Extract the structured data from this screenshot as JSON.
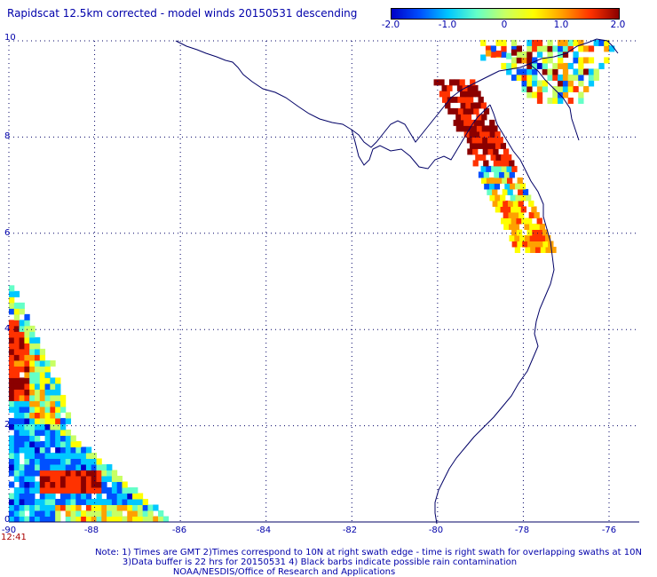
{
  "title": "Rapidscat 12.5km corrected - model winds 20150531 descending",
  "colorbar": {
    "ticks": [
      "-2.0",
      "-1.0",
      "0",
      "1.0",
      "2.0"
    ],
    "tick_values": [
      -2,
      -1,
      0,
      1,
      2
    ],
    "range": [
      -2,
      2
    ],
    "colors": [
      "#0000c8",
      "#0050ff",
      "#00c8ff",
      "#64ffc8",
      "#c8ff64",
      "#ffff00",
      "#ffa000",
      "#ff3200",
      "#8b0000"
    ]
  },
  "axes": {
    "x_labels": [
      "-90",
      "-88",
      "-86",
      "-84",
      "-82",
      "-80",
      "-78",
      "-76"
    ],
    "x_values": [
      -90,
      -88,
      -86,
      -84,
      -82,
      -80,
      -78,
      -76
    ],
    "y_labels": [
      "10",
      "8",
      "6",
      "4",
      "2",
      "0"
    ],
    "y_values": [
      10,
      8,
      6,
      4,
      2,
      0
    ],
    "lon_range": [
      -90,
      -75.5
    ],
    "lat_range": [
      0,
      10
    ],
    "grid": "dotted"
  },
  "time_label": "12:41",
  "notes": [
    "Note: 1) Times are GMT 2)Times correspond to 10N at right swath edge - time is right swath for overlapping swaths at 10N",
    "3)Data buffer is 22 hrs for 20150531 4) Black barbs indicate possible rain contamination",
    "NOAA/NESDIS/Office of Research and Applications"
  ],
  "coast_color": "#000066",
  "grid_color": "#000066",
  "swath_data": {
    "cell_deg": 0.12,
    "regions": [
      {
        "name": "west-swath",
        "lon_min": -90,
        "lon_max": -86.3,
        "lat_min": 0,
        "lat_max": 5.0,
        "boundary_lats": [
          5.0,
          4.3,
          3.5,
          2.3,
          1.5,
          0.4
        ],
        "pattern": "mixed-cool-with-warm-core"
      },
      {
        "name": "panama-bight",
        "lon_min": -79.6,
        "lon_max": -77.6,
        "lat_min": 5.6,
        "lat_max": 9.1,
        "pattern": "strong-positive"
      },
      {
        "name": "northeast-caribbean",
        "lon_min": -79.0,
        "lon_max": -75.9,
        "lat_min": 8.7,
        "lat_max": 9.9,
        "pattern": "mixed-warm"
      }
    ]
  }
}
